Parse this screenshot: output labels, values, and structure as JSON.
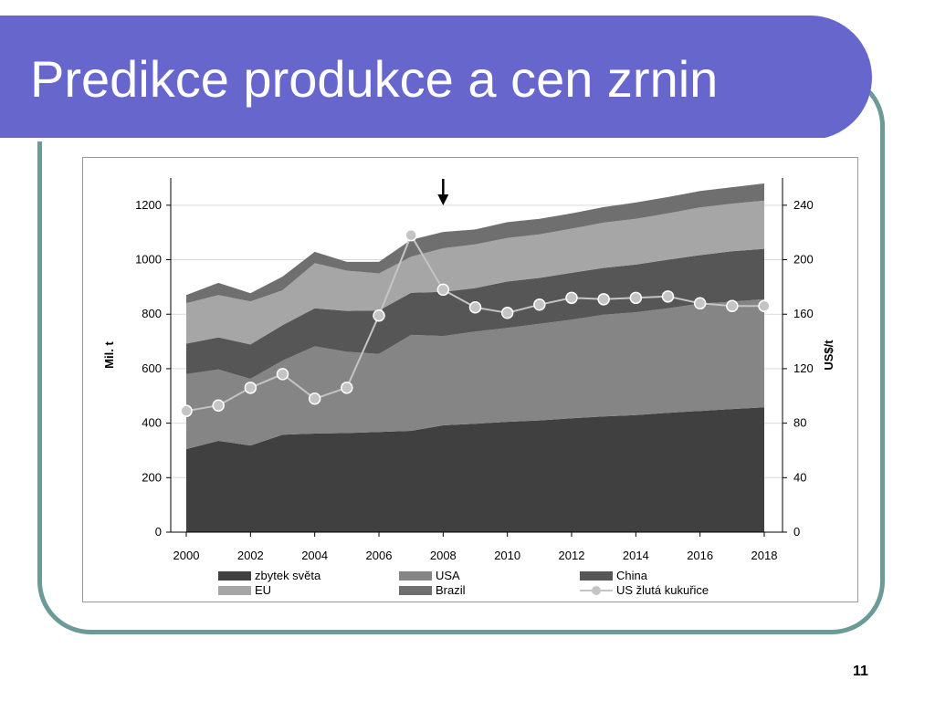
{
  "slide": {
    "title": "Predikce produkce a cen zrnin",
    "page_number": "11",
    "colors": {
      "banner": "#6666cc",
      "frame": "#6b9a99",
      "title_text": "#ffffff"
    }
  },
  "chart_data": {
    "type": "area",
    "stacked": true,
    "title": "",
    "x": [
      2000,
      2001,
      2002,
      2003,
      2004,
      2005,
      2006,
      2007,
      2008,
      2009,
      2010,
      2011,
      2012,
      2013,
      2014,
      2015,
      2016,
      2017,
      2018
    ],
    "x_ticks": [
      "2000",
      "2002",
      "2004",
      "2006",
      "2008",
      "2010",
      "2012",
      "2014",
      "2016",
      "2018"
    ],
    "xlim": [
      2000,
      2018
    ],
    "ylabel_left": "Mil. t",
    "ylim_left": [
      0,
      1300
    ],
    "yticks_left": [
      "0",
      "200",
      "400",
      "600",
      "800",
      "1000",
      "1200"
    ],
    "ylabel_right": "US$/t",
    "ylim_right": [
      0,
      260
    ],
    "yticks_right": [
      "0",
      "40",
      "80",
      "120",
      "160",
      "200",
      "240"
    ],
    "grid": true,
    "legend_position": "bottom",
    "annotation_arrow_x": 2008,
    "series": [
      {
        "name": "zbytek světa",
        "axis": "left",
        "color": "#404040",
        "values": [
          305,
          335,
          318,
          358,
          362,
          364,
          368,
          372,
          392,
          398,
          405,
          410,
          418,
          425,
          430,
          438,
          445,
          452,
          458
        ]
      },
      {
        "name": "USA",
        "axis": "left",
        "color": "#858585",
        "values": [
          275,
          262,
          245,
          272,
          320,
          298,
          286,
          352,
          328,
          338,
          345,
          355,
          362,
          373,
          377,
          384,
          394,
          394,
          397
        ]
      },
      {
        "name": "China",
        "axis": "left",
        "color": "#565656",
        "values": [
          112,
          118,
          126,
          130,
          140,
          150,
          160,
          155,
          162,
          160,
          170,
          168,
          172,
          172,
          175,
          178,
          178,
          185,
          185
        ]
      },
      {
        "name": "EU",
        "axis": "left",
        "color": "#a6a6a6",
        "values": [
          148,
          155,
          158,
          128,
          165,
          148,
          136,
          132,
          160,
          160,
          160,
          160,
          162,
          166,
          168,
          170,
          175,
          175,
          177
        ]
      },
      {
        "name": "Brazil",
        "axis": "left",
        "color": "#6f6f6f",
        "values": [
          30,
          45,
          30,
          50,
          42,
          32,
          42,
          62,
          60,
          55,
          58,
          57,
          56,
          57,
          60,
          60,
          60,
          60,
          63
        ]
      },
      {
        "name": "US žlutá kukuřice",
        "axis": "right",
        "type": "line",
        "color": "#c4c4c4",
        "values": [
          89,
          93,
          106,
          116,
          98,
          106,
          159,
          218,
          178,
          165,
          161,
          167,
          172,
          171,
          172,
          173,
          168,
          166,
          166
        ]
      }
    ]
  }
}
